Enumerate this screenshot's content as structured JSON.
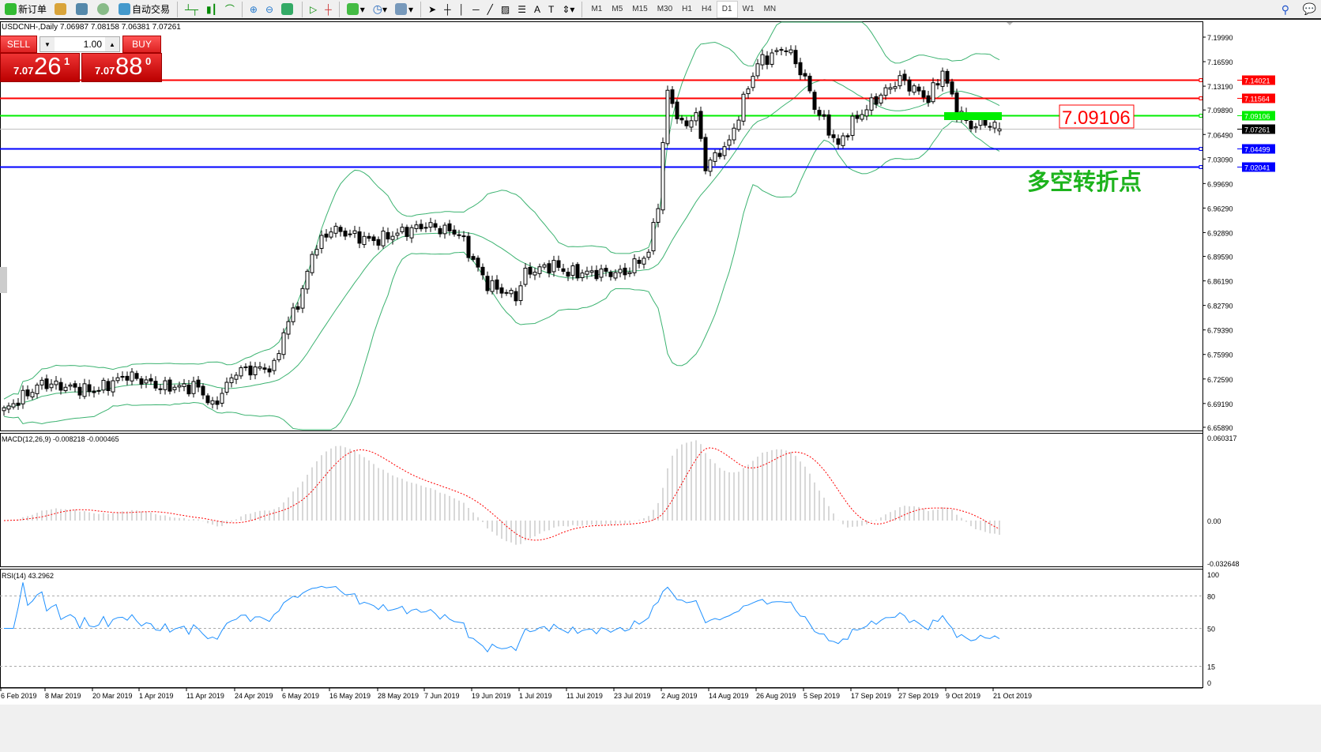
{
  "toolbar": {
    "new_order": "新订单",
    "auto_trading": "自动交易",
    "timeframes": [
      "M1",
      "M5",
      "M15",
      "M30",
      "H1",
      "H4",
      "D1",
      "W1",
      "MN"
    ],
    "active_timeframe": "D1"
  },
  "chart": {
    "symbol_line": "USDCNH-,Daily  7.06987 7.08158 7.06381 7.07261",
    "trade": {
      "sell": "SELL",
      "buy": "BUY",
      "lot": "1.00",
      "sell_prefix": "7.07",
      "sell_big": "26",
      "sell_sup": "1",
      "buy_prefix": "7.07",
      "buy_big": "88",
      "buy_sup": "0"
    },
    "price_ticks": [
      "7.19990",
      "7.16590",
      "7.13190",
      "7.09890",
      "7.06490",
      "7.03090",
      "6.99690",
      "6.96290",
      "6.92890",
      "6.89590",
      "6.86190",
      "6.82790",
      "6.79390",
      "6.75990",
      "6.72590",
      "6.69190",
      "6.65890"
    ],
    "levels": [
      {
        "price": "7.14021",
        "color": "#ff0000"
      },
      {
        "price": "7.11564",
        "color": "#ff0000"
      },
      {
        "price": "7.09106",
        "color": "#00ee00"
      },
      {
        "price": "7.07261",
        "color": "#000000"
      },
      {
        "price": "7.04499",
        "color": "#0000ff"
      },
      {
        "price": "7.02041",
        "color": "#0000ff"
      }
    ],
    "annotation_price": "7.09106",
    "annotation_text": "多空转折点",
    "macd_label": "MACD(12,26,9) -0.008218 -0.000465",
    "macd_ticks": [
      "0.060317",
      "0.00",
      "-0.032648"
    ],
    "rsi_label": "RSI(14) 43.2962",
    "rsi_ticks": [
      "100",
      "80",
      "50",
      "15",
      "0"
    ],
    "dates": [
      "6 Feb 2019",
      "8 Mar 2019",
      "20 Mar 2019",
      "1 Apr 2019",
      "11 Apr 2019",
      "24 Apr 2019",
      "6 May 2019",
      "16 May 2019",
      "28 May 2019",
      "7 Jun 2019",
      "19 Jun 2019",
      "1 Jul 2019",
      "11 Jul 2019",
      "23 Jul 2019",
      "2 Aug 2019",
      "14 Aug 2019",
      "26 Aug 2019",
      "5 Sep 2019",
      "17 Sep 2019",
      "27 Sep 2019",
      "9 Oct 2019",
      "21 Oct 2019"
    ]
  },
  "chart_data": {
    "type": "candlestick",
    "indicators": [
      "Bollinger Bands(20)",
      "MACD(12,26,9)",
      "RSI(14)"
    ],
    "last_bar": {
      "open": 7.06987,
      "high": 7.08158,
      "low": 7.06381,
      "close": 7.07261
    },
    "price_path": [
      [
        0,
        6.682
      ],
      [
        8,
        6.72
      ],
      [
        19,
        6.709
      ],
      [
        26,
        6.731
      ],
      [
        33,
        6.715
      ],
      [
        41,
        6.715
      ],
      [
        44,
        6.687
      ],
      [
        49,
        6.737
      ],
      [
        57,
        6.742
      ],
      [
        59,
        6.791
      ],
      [
        63,
        6.846
      ],
      [
        65,
        6.901
      ],
      [
        69,
        6.934
      ],
      [
        78,
        6.917
      ],
      [
        83,
        6.928
      ],
      [
        89,
        6.939
      ],
      [
        96,
        6.928
      ],
      [
        99,
        6.89
      ],
      [
        102,
        6.857
      ],
      [
        108,
        6.84
      ],
      [
        110,
        6.873
      ],
      [
        116,
        6.884
      ],
      [
        119,
        6.873
      ],
      [
        131,
        6.873
      ],
      [
        136,
        6.901
      ],
      [
        138,
        6.972
      ],
      [
        140,
        7.125
      ],
      [
        143,
        7.076
      ],
      [
        146,
        7.092
      ],
      [
        148,
        7.021
      ],
      [
        153,
        7.054
      ],
      [
        157,
        7.131
      ],
      [
        159,
        7.164
      ],
      [
        165,
        7.186
      ],
      [
        169,
        7.142
      ],
      [
        171,
        7.104
      ],
      [
        176,
        7.049
      ],
      [
        179,
        7.082
      ],
      [
        184,
        7.114
      ],
      [
        189,
        7.142
      ],
      [
        195,
        7.114
      ],
      [
        198,
        7.153
      ],
      [
        201,
        7.098
      ],
      [
        204,
        7.076
      ],
      [
        207,
        7.082
      ],
      [
        210,
        7.07261
      ]
    ],
    "rsi_levels": [
      80,
      50,
      15
    ]
  }
}
